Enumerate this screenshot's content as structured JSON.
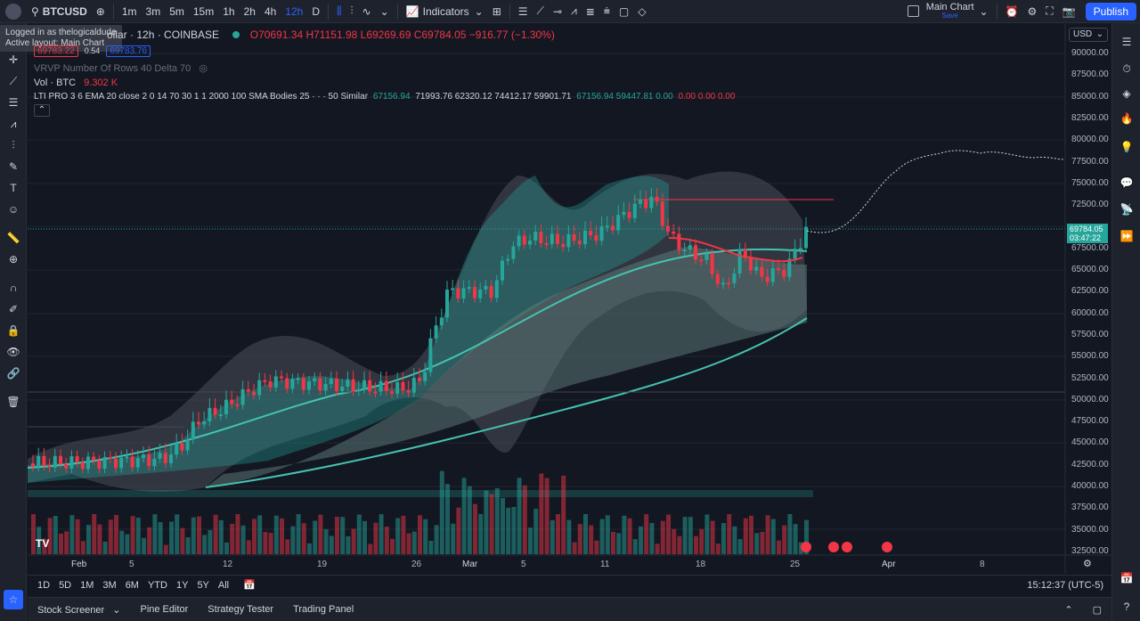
{
  "topbar": {
    "symbol": "BTCUSD",
    "timeframes": [
      "1m",
      "3m",
      "5m",
      "15m",
      "1h",
      "2h",
      "4h",
      "12h",
      "D"
    ],
    "active_timeframe": "12h",
    "indicators_label": "Indicators",
    "layout_name": "Main Chart",
    "layout_sub": "Save",
    "publish_label": "Publish"
  },
  "tooltip": {
    "line1": "Logged in as thelogicaldude",
    "line2": "Active layout: Main Chart"
  },
  "legend": {
    "title": "ollar · 12h · COINBASE",
    "open": "O70691.34",
    "high": "H71151.98",
    "low": "L69269.69",
    "close": "C69784.05",
    "change": "−916.77 (−1.30%)",
    "bid": "69783.22",
    "spread": "0.54",
    "ask": "69783.76",
    "vrvp": "VRVP Number Of Rows 40 Delta 70",
    "vol_label": "Vol · BTC",
    "vol_value": "9.302 K",
    "lti_label": "LTI PRO 3 6 EMA 20 close 2 0 14 70 30 1 1 2000 100 SMA Bodies 25 · · · 50 Similar",
    "lti_values_green1": "67156.94",
    "lti_values_white": "71993.76  62320.12  74412.17  59901.71",
    "lti_values_green2": "67156.94  59447.81  0.00",
    "lti_values_red": "0.00  0.00  0.00"
  },
  "price_axis": {
    "currency": "USD",
    "labels": [
      "90000.00",
      "87500.00",
      "85000.00",
      "82500.00",
      "80000.00",
      "77500.00",
      "75000.00",
      "72500.00",
      "67500.00",
      "65000.00",
      "62500.00",
      "60000.00",
      "57500.00",
      "55000.00",
      "52500.00",
      "50000.00",
      "47500.00",
      "45000.00",
      "42500.00",
      "40000.00",
      "37500.00",
      "35000.00",
      "32500.00"
    ],
    "current_price": "69784.05",
    "countdown": "03:47:22"
  },
  "time_axis": [
    "Feb",
    "5",
    "12",
    "19",
    "26",
    "Mar",
    "5",
    "11",
    "18",
    "25",
    "Apr",
    "8"
  ],
  "timeframe_bar": {
    "ranges": [
      "1D",
      "5D",
      "1M",
      "3M",
      "6M",
      "YTD",
      "1Y",
      "5Y",
      "All"
    ],
    "clock": "15:12:37 (UTC-5)"
  },
  "bottom_tabs": [
    "Stock Screener",
    "Pine Editor",
    "Strategy Tester",
    "Trading Panel"
  ],
  "colors": {
    "up": "#26a69a",
    "down": "#f23645",
    "accent": "#2962ff",
    "bg": "#131722"
  }
}
